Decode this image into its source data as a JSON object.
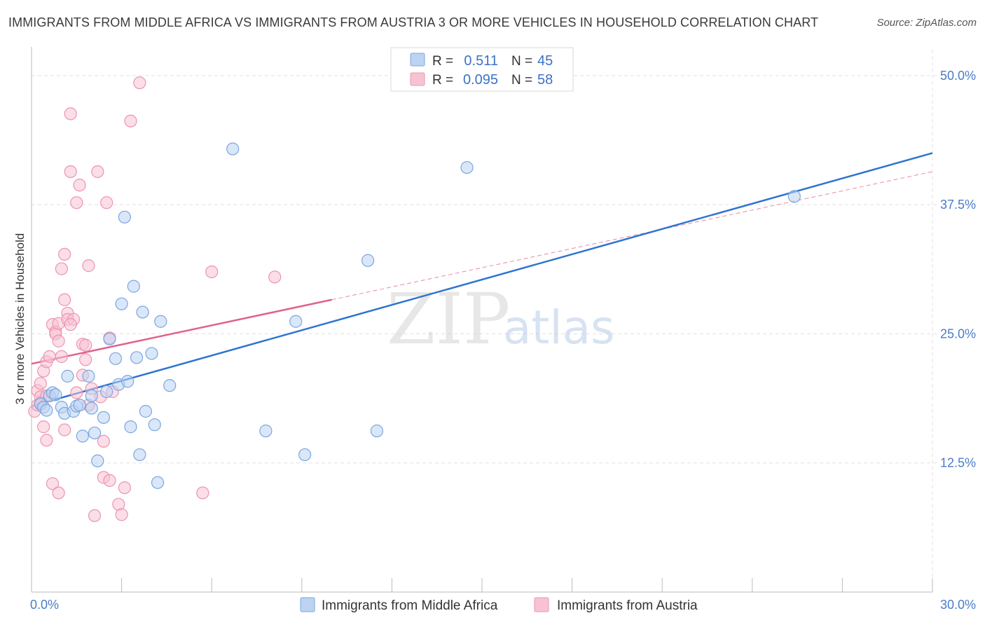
{
  "title": "IMMIGRANTS FROM MIDDLE AFRICA VS IMMIGRANTS FROM AUSTRIA 3 OR MORE VEHICLES IN HOUSEHOLD CORRELATION CHART",
  "source": "Source: ZipAtlas.com",
  "watermark": {
    "zip": "ZIP",
    "atlas": "atlas"
  },
  "colors": {
    "blue_fill": "#bcd3f2",
    "blue_stroke": "#7aa6e0",
    "blue_line": "#2f74d0",
    "pink_fill": "#f7c3d3",
    "pink_stroke": "#ec95b0",
    "pink_line": "#e0628c",
    "grid": "#e0e0e0",
    "axis_text": "#4a7cc8"
  },
  "stats": [
    {
      "r_label": "R =",
      "r_value": "0.511",
      "n_label": "N =",
      "n_value": "45",
      "swatch": "blue"
    },
    {
      "r_label": "R =",
      "r_value": "0.095",
      "n_label": "N =",
      "n_value": "58",
      "swatch": "pink"
    }
  ],
  "chart_data": {
    "type": "scatter",
    "title": "IMMIGRANTS FROM MIDDLE AFRICA VS IMMIGRANTS FROM AUSTRIA 3 OR MORE VEHICLES IN HOUSEHOLD CORRELATION CHART",
    "xlabel": "",
    "ylabel": "3 or more Vehicles in Household",
    "xlim": [
      0,
      30
    ],
    "ylim": [
      0,
      52.5
    ],
    "x_tick_labels": [
      "0.0%",
      "30.0%"
    ],
    "y_ticks": [
      12.5,
      25.0,
      37.5,
      50.0
    ],
    "y_tick_labels": [
      "12.5%",
      "25.0%",
      "37.5%",
      "50.0%"
    ],
    "grid": true,
    "legend_position": "bottom-center",
    "series": [
      {
        "name": "Immigrants from Middle Africa",
        "color": "blue",
        "r": 0.511,
        "n": 45,
        "trend": {
          "x": [
            0,
            30
          ],
          "y": [
            18.0,
            42.5
          ],
          "style": "solid"
        },
        "points": [
          [
            0.3,
            18.2
          ],
          [
            0.4,
            17.9
          ],
          [
            0.5,
            17.6
          ],
          [
            0.6,
            19.0
          ],
          [
            0.7,
            19.3
          ],
          [
            0.8,
            19.1
          ],
          [
            1.0,
            17.9
          ],
          [
            1.1,
            17.3
          ],
          [
            1.2,
            20.9
          ],
          [
            1.4,
            17.5
          ],
          [
            1.5,
            18.0
          ],
          [
            1.6,
            18.1
          ],
          [
            1.7,
            15.1
          ],
          [
            1.9,
            20.9
          ],
          [
            2.0,
            19.0
          ],
          [
            2.1,
            15.4
          ],
          [
            2.2,
            12.7
          ],
          [
            2.4,
            16.9
          ],
          [
            2.5,
            19.4
          ],
          [
            2.6,
            24.5
          ],
          [
            2.8,
            22.6
          ],
          [
            2.9,
            20.1
          ],
          [
            3.0,
            27.9
          ],
          [
            3.2,
            20.4
          ],
          [
            3.3,
            16.0
          ],
          [
            3.4,
            29.6
          ],
          [
            3.5,
            22.7
          ],
          [
            3.6,
            13.3
          ],
          [
            3.7,
            27.1
          ],
          [
            3.8,
            17.5
          ],
          [
            4.0,
            23.1
          ],
          [
            4.1,
            16.2
          ],
          [
            4.2,
            10.6
          ],
          [
            4.3,
            26.2
          ],
          [
            4.6,
            20.0
          ],
          [
            3.1,
            36.3
          ],
          [
            6.7,
            42.9
          ],
          [
            7.8,
            15.6
          ],
          [
            8.8,
            26.2
          ],
          [
            9.1,
            13.3
          ],
          [
            11.2,
            32.1
          ],
          [
            11.5,
            15.6
          ],
          [
            14.5,
            41.1
          ],
          [
            25.4,
            38.3
          ],
          [
            2.0,
            17.8
          ]
        ]
      },
      {
        "name": "Immigrants from Austria",
        "color": "pink",
        "r": 0.095,
        "n": 58,
        "trend": {
          "x": [
            0,
            10
          ],
          "y": [
            22.1,
            28.3
          ],
          "style": "solid",
          "extended": {
            "x": [
              10,
              30
            ],
            "y": [
              28.3,
              40.7
            ],
            "style": "dashed"
          }
        },
        "points": [
          [
            0.1,
            17.5
          ],
          [
            0.2,
            19.5
          ],
          [
            0.3,
            18.9
          ],
          [
            0.3,
            20.2
          ],
          [
            0.4,
            21.4
          ],
          [
            0.4,
            16.0
          ],
          [
            0.5,
            22.3
          ],
          [
            0.5,
            14.7
          ],
          [
            0.6,
            22.8
          ],
          [
            0.6,
            19.0
          ],
          [
            0.7,
            25.9
          ],
          [
            0.8,
            25.2
          ],
          [
            0.8,
            25.0
          ],
          [
            0.9,
            24.3
          ],
          [
            0.9,
            26.0
          ],
          [
            1.0,
            22.8
          ],
          [
            1.0,
            31.3
          ],
          [
            1.1,
            32.7
          ],
          [
            1.1,
            28.3
          ],
          [
            1.2,
            27.0
          ],
          [
            1.2,
            26.4
          ],
          [
            1.3,
            40.7
          ],
          [
            1.3,
            46.3
          ],
          [
            1.4,
            26.4
          ],
          [
            1.5,
            37.7
          ],
          [
            1.5,
            19.3
          ],
          [
            1.6,
            39.4
          ],
          [
            1.7,
            24.0
          ],
          [
            1.7,
            21.0
          ],
          [
            1.8,
            22.5
          ],
          [
            1.9,
            18.1
          ],
          [
            1.9,
            31.6
          ],
          [
            2.0,
            19.7
          ],
          [
            2.1,
            7.4
          ],
          [
            2.2,
            40.7
          ],
          [
            2.3,
            18.9
          ],
          [
            2.4,
            14.6
          ],
          [
            2.4,
            11.1
          ],
          [
            2.5,
            37.7
          ],
          [
            2.6,
            10.8
          ],
          [
            2.7,
            19.4
          ],
          [
            2.9,
            8.5
          ],
          [
            3.0,
            7.5
          ],
          [
            3.1,
            10.1
          ],
          [
            3.3,
            45.6
          ],
          [
            3.6,
            49.3
          ],
          [
            5.7,
            9.6
          ],
          [
            6.0,
            31.0
          ],
          [
            8.1,
            30.5
          ],
          [
            0.2,
            18.1
          ],
          [
            0.7,
            10.5
          ],
          [
            0.9,
            9.6
          ],
          [
            1.1,
            15.7
          ],
          [
            1.3,
            25.9
          ],
          [
            0.5,
            19.0
          ],
          [
            2.6,
            24.6
          ],
          [
            1.8,
            23.9
          ],
          [
            0.3,
            18.3
          ]
        ]
      }
    ]
  },
  "legend": [
    {
      "label": "Immigrants from Middle Africa",
      "swatch": "blue"
    },
    {
      "label": "Immigrants from Austria",
      "swatch": "pink"
    }
  ]
}
